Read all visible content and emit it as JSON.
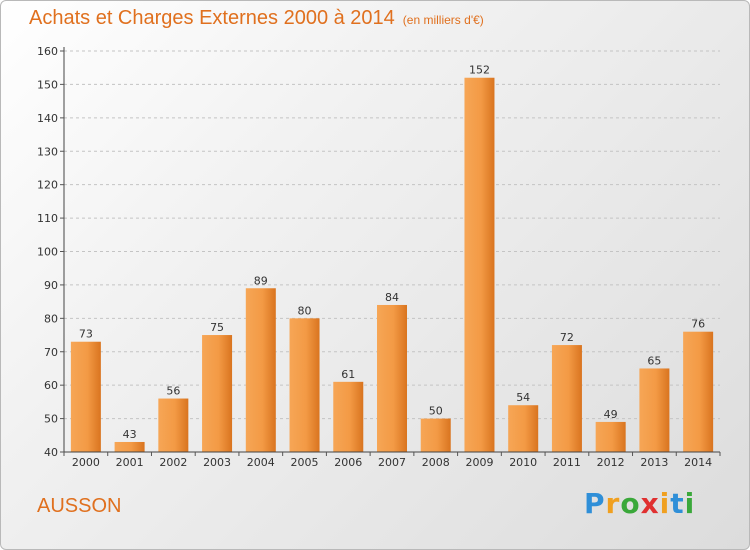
{
  "title": {
    "main": "Achats et Charges Externes 2000 à 2014",
    "sub": "(en milliers d'€)"
  },
  "commune": "AUSSON",
  "brand": {
    "letters": [
      {
        "ch": "P",
        "color": "#2f8fd8"
      },
      {
        "ch": "r",
        "color": "#f0a020"
      },
      {
        "ch": "o",
        "color": "#3aa83a"
      },
      {
        "ch": "x",
        "color": "#e03030"
      },
      {
        "ch": "i",
        "color": "#f0a020"
      },
      {
        "ch": "t",
        "color": "#2f8fd8"
      },
      {
        "ch": "i",
        "color": "#3aa83a"
      }
    ]
  },
  "colors": {
    "bar_light": "#f6a656",
    "bar_dark": "#d9741f",
    "accent": "#e0701e"
  },
  "chart_data": {
    "type": "bar",
    "title": "Achats et Charges Externes 2000 à 2014",
    "subtitle": "(en milliers d'€)",
    "categories": [
      "2000",
      "2001",
      "2002",
      "2003",
      "2004",
      "2005",
      "2006",
      "2007",
      "2008",
      "2009",
      "2010",
      "2011",
      "2012",
      "2013",
      "2014"
    ],
    "values": [
      73,
      43,
      56,
      75,
      89,
      80,
      61,
      84,
      50,
      152,
      54,
      72,
      49,
      65,
      76
    ],
    "ylim": [
      40,
      160
    ],
    "yticks": [
      40,
      50,
      60,
      70,
      80,
      90,
      100,
      110,
      120,
      130,
      140,
      150,
      160
    ],
    "grid": true,
    "legend": "none"
  }
}
